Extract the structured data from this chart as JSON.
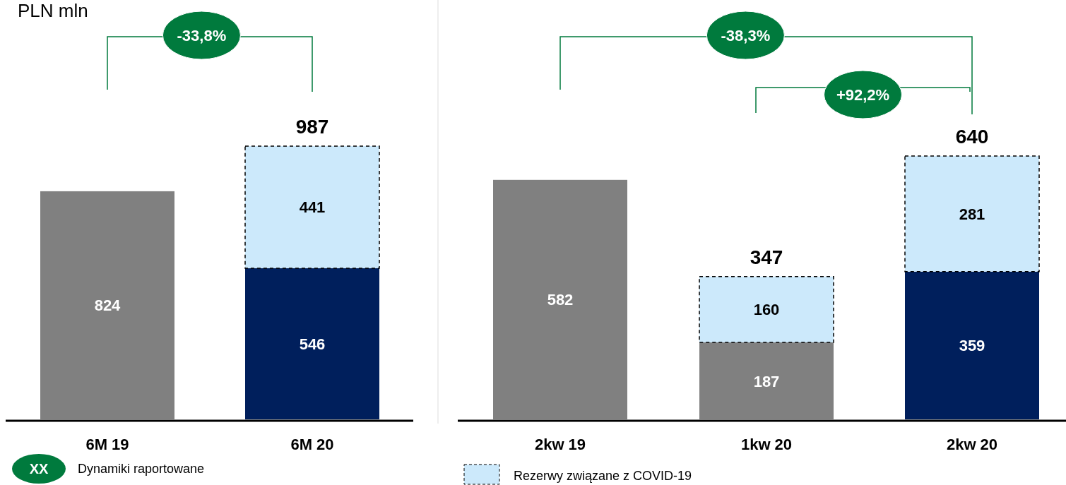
{
  "chart_data": [
    {
      "type": "bar",
      "title": "PLN mln",
      "stacked": true,
      "data_labels": true,
      "categories": [
        "6M 19",
        "6M 20"
      ],
      "series": [
        {
          "color": "#808080",
          "values": [
            824,
            null
          ]
        },
        {
          "color": "#001f5c",
          "values": [
            null,
            546
          ]
        },
        {
          "color": "#cce9fb",
          "values": [
            null,
            441
          ]
        }
      ],
      "totals": [
        null,
        "987"
      ],
      "annotations": [
        "-33,8%",
        "XX",
        "Dynamiki raportowane"
      ]
    },
    {
      "type": "bar",
      "stacked": true,
      "data_labels": true,
      "legend": "bottom",
      "categories": [
        "2kw 19",
        "1kw 20",
        "2kw 20"
      ],
      "series": [
        {
          "color": "#808080",
          "values": [
            582,
            187,
            null
          ]
        },
        {
          "color": "#001f5c",
          "values": [
            null,
            null,
            359
          ]
        },
        {
          "name": "Rezerwy związane z COVID-19",
          "color": "#cce9fb",
          "values": [
            null,
            160,
            281
          ]
        }
      ],
      "totals": [
        null,
        "347",
        "640"
      ],
      "annotations": [
        "-38,3%",
        "+92,2%"
      ]
    }
  ]
}
